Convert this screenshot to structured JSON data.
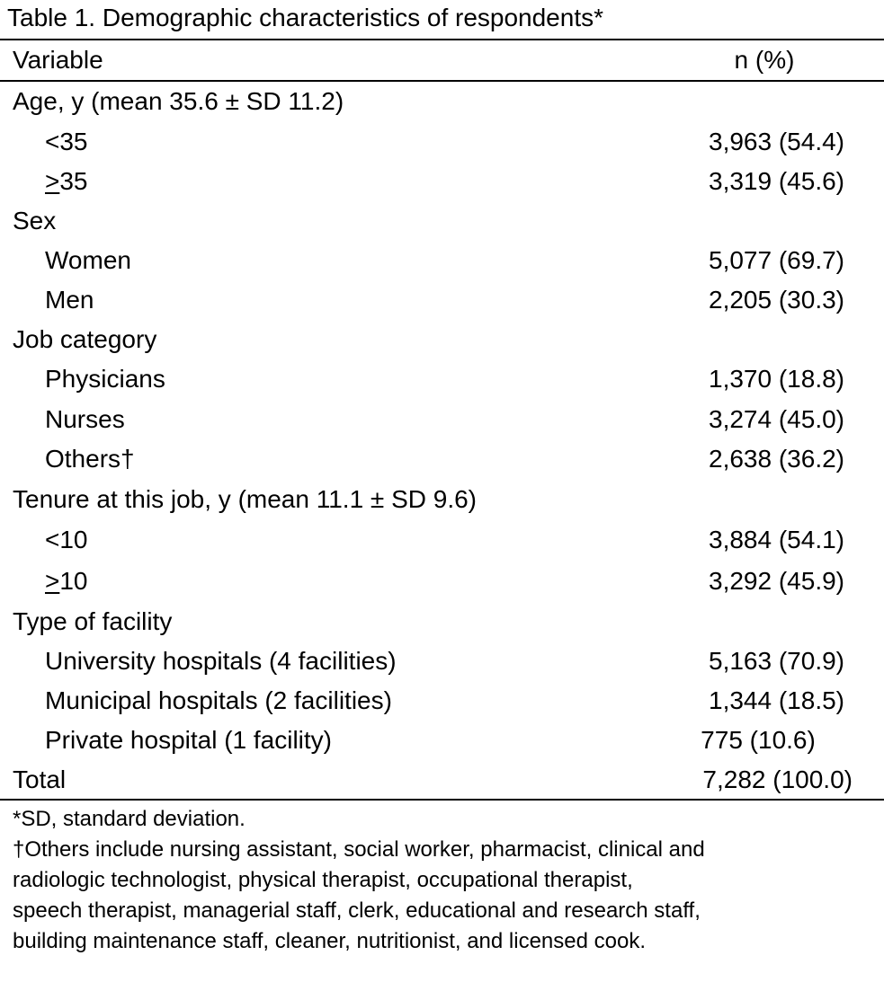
{
  "caption": "Table 1. Demographic characteristics of respondents*",
  "header": {
    "variable": "Variable",
    "value": "n (%)"
  },
  "age": {
    "label": "Age, y (mean 35.6 ± SD 11.2)",
    "lt35": {
      "op": "<",
      "num": "35",
      "value": "3,963 (54.4)"
    },
    "ge35": {
      "op": ">",
      "num": "35",
      "value": "3,319 (45.6)"
    }
  },
  "sex": {
    "label": "Sex",
    "women": {
      "label": "Women",
      "value": "5,077 (69.7)"
    },
    "men": {
      "label": "Men",
      "value": "2,205 (30.3)"
    }
  },
  "job": {
    "label": "Job category",
    "physicians": {
      "label": "Physicians",
      "value": "1,370 (18.8)"
    },
    "nurses": {
      "label": "Nurses",
      "value": "3,274 (45.0)"
    },
    "others": {
      "label": "Others†",
      "value": "2,638 (36.2)"
    }
  },
  "tenure": {
    "label": "Tenure at this job, y (mean 11.1 ± SD 9.6)",
    "lt10": {
      "op": "<",
      "num": "10",
      "value": "3,884 (54.1)"
    },
    "ge10": {
      "op": ">",
      "num": "10",
      "value": "3,292 (45.9)"
    }
  },
  "facility": {
    "label": "Type of facility",
    "university": {
      "label": "University hospitals (4 facilities)",
      "value": "5,163 (70.9)"
    },
    "municipal": {
      "label": "Municipal hospitals (2 facilities)",
      "value": "1,344 (18.5)"
    },
    "private": {
      "label": "Private hospital (1 facility)",
      "value": "775 (10.6)"
    }
  },
  "total": {
    "label": "Total",
    "value": "7,282 (100.0)"
  },
  "footnotes": {
    "sd": "*SD, standard deviation.",
    "others_line1": "†Others include nursing assistant, social worker, pharmacist, clinical and",
    "others_line2": "radiologic technologist, physical therapist, occupational therapist,",
    "others_line3": "speech therapist, managerial staff, clerk, educational and research staff,",
    "others_line4": "building maintenance staff, cleaner, nutritionist, and licensed cook."
  }
}
